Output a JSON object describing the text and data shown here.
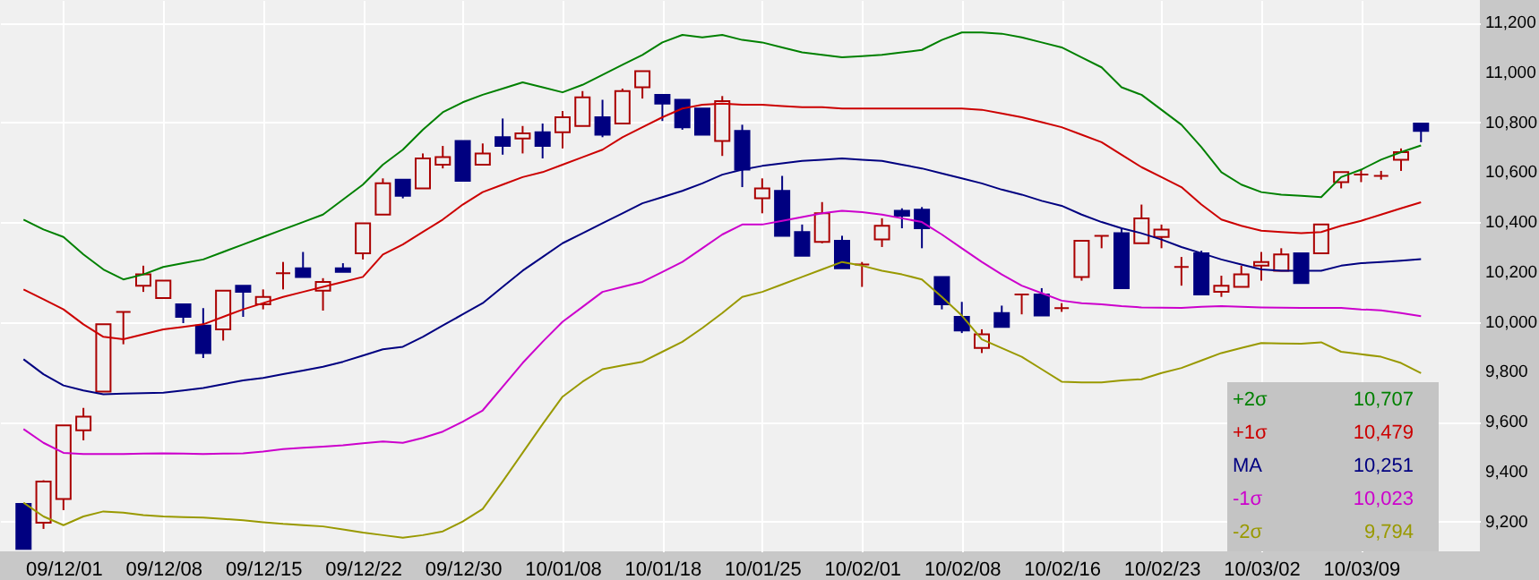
{
  "chart_data": {
    "type": "candlestick",
    "categories": [
      null,
      null,
      "09/12/01",
      null,
      null,
      null,
      null,
      "09/12/08",
      null,
      null,
      null,
      null,
      "09/12/15",
      null,
      null,
      null,
      null,
      "09/12/22",
      null,
      null,
      null,
      null,
      "09/12/30",
      null,
      null,
      null,
      null,
      "10/01/08",
      null,
      null,
      null,
      null,
      "10/01/18",
      null,
      null,
      null,
      null,
      "10/01/25",
      null,
      null,
      null,
      null,
      "10/02/01",
      null,
      null,
      null,
      null,
      "10/02/08",
      null,
      null,
      null,
      null,
      "10/02/16",
      null,
      null,
      null,
      null,
      "10/02/23",
      null,
      null,
      null,
      null,
      "10/03/02",
      null,
      null,
      null,
      null,
      "10/03/09",
      null,
      null,
      null
    ],
    "ohlc": [
      [
        9270,
        9270,
        9090,
        9090
      ],
      [
        9195,
        9365,
        9170,
        9360
      ],
      [
        9290,
        9585,
        9245,
        9585
      ],
      [
        9565,
        9655,
        9525,
        9620
      ],
      [
        9720,
        9990,
        9720,
        9990
      ],
      [
        10040,
        10040,
        9910,
        10040
      ],
      [
        10145,
        10225,
        10120,
        10190
      ],
      [
        10095,
        10165,
        10095,
        10165
      ],
      [
        10070,
        10070,
        9995,
        10020
      ],
      [
        9985,
        10055,
        9855,
        9875
      ],
      [
        9970,
        10125,
        9925,
        10125
      ],
      [
        10145,
        10145,
        10020,
        10120
      ],
      [
        10070,
        10130,
        10050,
        10100
      ],
      [
        10195,
        10240,
        10130,
        10195
      ],
      [
        10215,
        10280,
        10180,
        10180
      ],
      [
        10125,
        10175,
        10045,
        10160
      ],
      [
        10215,
        10235,
        10200,
        10200
      ],
      [
        10275,
        10395,
        10250,
        10395
      ],
      [
        10430,
        10575,
        10430,
        10555
      ],
      [
        10570,
        10570,
        10495,
        10505
      ],
      [
        10535,
        10675,
        10535,
        10655
      ],
      [
        10630,
        10705,
        10615,
        10660
      ],
      [
        10725,
        10725,
        10565,
        10565
      ],
      [
        10630,
        10715,
        10630,
        10675
      ],
      [
        10740,
        10815,
        10670,
        10705
      ],
      [
        10735,
        10785,
        10675,
        10755
      ],
      [
        10760,
        10795,
        10655,
        10705
      ],
      [
        10760,
        10845,
        10695,
        10820
      ],
      [
        10785,
        10925,
        10785,
        10900
      ],
      [
        10820,
        10890,
        10740,
        10750
      ],
      [
        10795,
        10935,
        10795,
        10925
      ],
      [
        10940,
        11005,
        10895,
        11005
      ],
      [
        10910,
        10910,
        10805,
        10875
      ],
      [
        10890,
        10890,
        10770,
        10780
      ],
      [
        10855,
        10855,
        10750,
        10750
      ],
      [
        10725,
        10905,
        10665,
        10885
      ],
      [
        10765,
        10790,
        10540,
        10610
      ],
      [
        10495,
        10575,
        10435,
        10535
      ],
      [
        10525,
        10585,
        10345,
        10345
      ],
      [
        10360,
        10390,
        10265,
        10265
      ],
      [
        10320,
        10480,
        10315,
        10435
      ],
      [
        10325,
        10345,
        10215,
        10215
      ],
      [
        10230,
        10240,
        10140,
        10230
      ],
      [
        10330,
        10415,
        10300,
        10385
      ],
      [
        10445,
        10455,
        10375,
        10425
      ],
      [
        10450,
        10460,
        10295,
        10375
      ],
      [
        10180,
        10180,
        10050,
        10070
      ],
      [
        10020,
        10080,
        9955,
        9965
      ],
      [
        9895,
        9970,
        9875,
        9950
      ],
      [
        10035,
        10065,
        9980,
        9980
      ],
      [
        10110,
        10110,
        10030,
        10110
      ],
      [
        10110,
        10135,
        10025,
        10025
      ],
      [
        10055,
        10075,
        10040,
        10055
      ],
      [
        10180,
        10325,
        10165,
        10325
      ],
      [
        10345,
        10345,
        10295,
        10345
      ],
      [
        10355,
        10375,
        10135,
        10135
      ],
      [
        10315,
        10470,
        10315,
        10415
      ],
      [
        10340,
        10390,
        10295,
        10370
      ],
      [
        10220,
        10260,
        10145,
        10220
      ],
      [
        10275,
        10285,
        10110,
        10110
      ],
      [
        10120,
        10185,
        10100,
        10145
      ],
      [
        10140,
        10225,
        10140,
        10190
      ],
      [
        10225,
        10280,
        10165,
        10240
      ],
      [
        10205,
        10295,
        10205,
        10270
      ],
      [
        10275,
        10275,
        10155,
        10155
      ],
      [
        10275,
        10390,
        10275,
        10390
      ],
      [
        10560,
        10600,
        10535,
        10600
      ],
      [
        10590,
        10610,
        10560,
        10590
      ],
      [
        10585,
        10605,
        10570,
        10585
      ],
      [
        10650,
        10695,
        10605,
        10680
      ],
      [
        10795,
        10795,
        10720,
        10765
      ]
    ],
    "series": [
      {
        "name": "+2σ",
        "type": "line",
        "color": "#008000",
        "values": [
          10410,
          10370,
          10340,
          10270,
          10210,
          10170,
          10190,
          10220,
          10235,
          10250,
          10280,
          10310,
          10340,
          10370,
          10400,
          10430,
          10490,
          10550,
          10630,
          10690,
          10770,
          10840,
          10880,
          10910,
          10935,
          10960,
          10940,
          10920,
          10950,
          10990,
          11030,
          11070,
          11120,
          11150,
          11140,
          11150,
          11130,
          11120,
          11100,
          11080,
          11070,
          11060,
          11065,
          11070,
          11080,
          11090,
          11130,
          11160,
          11160,
          11155,
          11140,
          11120,
          11100,
          11060,
          11020,
          10940,
          10910,
          10850,
          10790,
          10700,
          10600,
          10550,
          10520,
          10510,
          10505,
          10500,
          10580,
          10610,
          10650,
          10680,
          10707
        ]
      },
      {
        "name": "+1σ",
        "type": "line",
        "color": "#cc0000",
        "values": [
          10130,
          10090,
          10050,
          9990,
          9940,
          9930,
          9950,
          9970,
          9980,
          9990,
          10020,
          10050,
          10075,
          10100,
          10120,
          10140,
          10160,
          10180,
          10270,
          10310,
          10360,
          10410,
          10470,
          10520,
          10550,
          10580,
          10600,
          10630,
          10660,
          10690,
          10740,
          10780,
          10820,
          10855,
          10870,
          10875,
          10870,
          10870,
          10865,
          10860,
          10860,
          10855,
          10855,
          10855,
          10855,
          10855,
          10855,
          10855,
          10850,
          10835,
          10820,
          10800,
          10780,
          10750,
          10720,
          10670,
          10620,
          10580,
          10540,
          10470,
          10410,
          10385,
          10365,
          10360,
          10355,
          10360,
          10385,
          10405,
          10430,
          10455,
          10479
        ]
      },
      {
        "name": "MA",
        "type": "line",
        "color": "#000080",
        "values": [
          9850,
          9790,
          9745,
          9725,
          9710,
          9712,
          9714,
          9716,
          9725,
          9735,
          9750,
          9765,
          9775,
          9790,
          9805,
          9820,
          9840,
          9865,
          9890,
          9900,
          9940,
          9985,
          10030,
          10075,
          10140,
          10205,
          10260,
          10315,
          10355,
          10395,
          10435,
          10475,
          10500,
          10525,
          10555,
          10590,
          10610,
          10625,
          10635,
          10645,
          10650,
          10655,
          10650,
          10645,
          10630,
          10615,
          10595,
          10575,
          10555,
          10530,
          10510,
          10485,
          10465,
          10430,
          10400,
          10375,
          10355,
          10330,
          10300,
          10275,
          10250,
          10230,
          10210,
          10205,
          10205,
          10205,
          10225,
          10235,
          10240,
          10245,
          10251
        ]
      },
      {
        "name": "-1σ",
        "type": "line",
        "color": "#cc00cc",
        "values": [
          9570,
          9515,
          9475,
          9470,
          9470,
          9470,
          9472,
          9473,
          9472,
          9470,
          9472,
          9473,
          9480,
          9490,
          9495,
          9500,
          9505,
          9513,
          9520,
          9515,
          9535,
          9560,
          9600,
          9645,
          9740,
          9835,
          9920,
          10000,
          10060,
          10120,
          10140,
          10160,
          10200,
          10240,
          10295,
          10350,
          10390,
          10390,
          10405,
          10420,
          10435,
          10445,
          10440,
          10430,
          10415,
          10400,
          10350,
          10295,
          10240,
          10190,
          10145,
          10115,
          10085,
          10075,
          10070,
          10063,
          10058,
          10057,
          10056,
          10060,
          10063,
          10060,
          10058,
          10057,
          10056,
          10056,
          10056,
          10050,
          10046,
          10035,
          10023
        ]
      },
      {
        "name": "-2σ",
        "type": "line",
        "color": "#999900",
        "values": [
          9275,
          9220,
          9185,
          9220,
          9240,
          9235,
          9225,
          9220,
          9217,
          9215,
          9210,
          9205,
          9197,
          9190,
          9185,
          9180,
          9168,
          9155,
          9145,
          9135,
          9145,
          9160,
          9200,
          9250,
          9360,
          9475,
          9590,
          9700,
          9760,
          9810,
          9825,
          9840,
          9880,
          9920,
          9975,
          10035,
          10100,
          10120,
          10150,
          10180,
          10210,
          10240,
          10225,
          10205,
          10190,
          10170,
          10100,
          10025,
          9930,
          9895,
          9860,
          9810,
          9760,
          9757,
          9757,
          9765,
          9770,
          9795,
          9815,
          9845,
          9875,
          9895,
          9915,
          9913,
          9912,
          9918,
          9880,
          9870,
          9860,
          9835,
          9794
        ]
      }
    ],
    "ylim": [
      9080,
      11290
    ],
    "yticks": [
      {
        "value": 9200,
        "label": "9,200"
      },
      {
        "value": 9400,
        "label": "9,400"
      },
      {
        "value": 9600,
        "label": "9,600"
      },
      {
        "value": 9800,
        "label": "9,800"
      },
      {
        "value": 10000,
        "label": "10,000"
      },
      {
        "value": 10200,
        "label": "10,200"
      },
      {
        "value": 10400,
        "label": "10,400"
      },
      {
        "value": 10600,
        "label": "10,600"
      },
      {
        "value": 10800,
        "label": "10,800"
      },
      {
        "value": 11000,
        "label": "11,000"
      },
      {
        "value": 11200,
        "label": "11,200"
      }
    ],
    "annotations": [
      "10,707",
      "10,479",
      "10,251",
      "10,023",
      "9,794"
    ],
    "grid": true,
    "legend": "bottom right"
  }
}
